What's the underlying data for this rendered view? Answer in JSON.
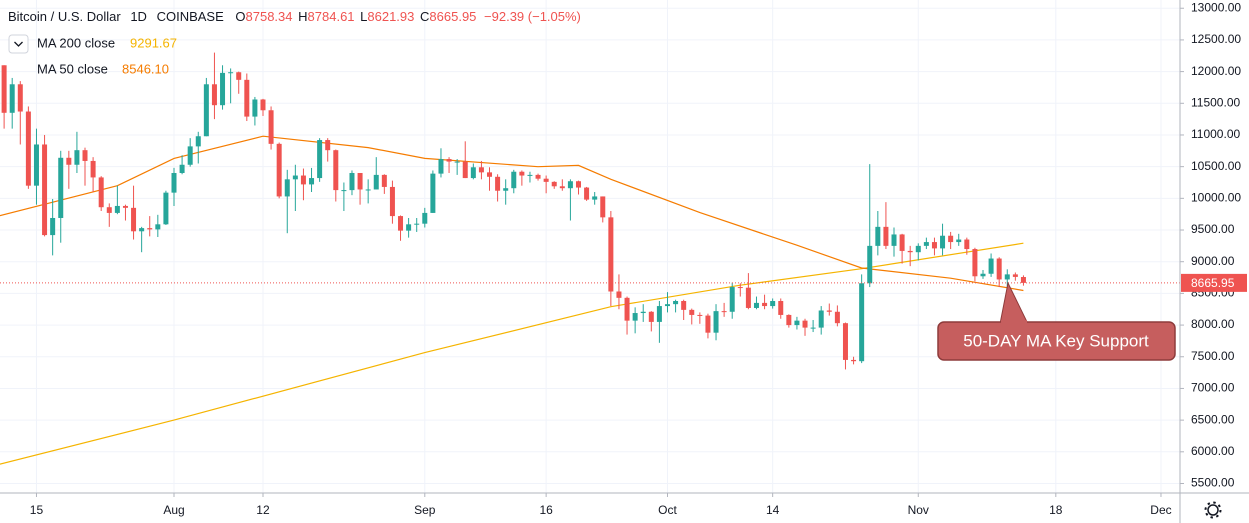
{
  "chart_data": {
    "type": "candlestick",
    "title": "Bitcoin / U.S. Dollar",
    "interval": "1D",
    "exchange": "COINBASE",
    "ohlc_letters": [
      "O",
      "H",
      "L",
      "C"
    ],
    "change_label": "−92.39 (−1.05%)",
    "annotation": "50-DAY MA Key Support",
    "up_color": "#26a69a",
    "down_color": "#ef5350",
    "x": [
      "Jul 11",
      "Jul 12",
      "Jul 13",
      "Jul 14",
      "Jul 15",
      "Jul 16",
      "Jul 17",
      "Jul 18",
      "Jul 19",
      "Jul 20",
      "Jul 21",
      "Jul 22",
      "Jul 23",
      "Jul 24",
      "Jul 25",
      "Jul 26",
      "Jul 27",
      "Jul 28",
      "Jul 29",
      "Jul 30",
      "Jul 31",
      "Aug 1",
      "Aug 2",
      "Aug 3",
      "Aug 4",
      "Aug 5",
      "Aug 6",
      "Aug 7",
      "Aug 8",
      "Aug 9",
      "Aug 10",
      "Aug 11",
      "Aug 12",
      "Aug 13",
      "Aug 14",
      "Aug 15",
      "Aug 16",
      "Aug 17",
      "Aug 18",
      "Aug 19",
      "Aug 20",
      "Aug 21",
      "Aug 22",
      "Aug 23",
      "Aug 24",
      "Aug 25",
      "Aug 26",
      "Aug 27",
      "Aug 28",
      "Aug 29",
      "Aug 30",
      "Aug 31",
      "Sep 1",
      "Sep 2",
      "Sep 3",
      "Sep 4",
      "Sep 5",
      "Sep 6",
      "Sep 7",
      "Sep 8",
      "Sep 9",
      "Sep 10",
      "Sep 11",
      "Sep 12",
      "Sep 13",
      "Sep 14",
      "Sep 15",
      "Sep 16",
      "Sep 17",
      "Sep 18",
      "Sep 19",
      "Sep 20",
      "Sep 21",
      "Sep 22",
      "Sep 23",
      "Sep 24",
      "Sep 25",
      "Sep 26",
      "Sep 27",
      "Sep 28",
      "Sep 29",
      "Sep 30",
      "Oct 1",
      "Oct 2",
      "Oct 3",
      "Oct 4",
      "Oct 5",
      "Oct 6",
      "Oct 7",
      "Oct 8",
      "Oct 9",
      "Oct 10",
      "Oct 11",
      "Oct 12",
      "Oct 13",
      "Oct 14",
      "Oct 15",
      "Oct 16",
      "Oct 17",
      "Oct 18",
      "Oct 19",
      "Oct 20",
      "Oct 21",
      "Oct 22",
      "Oct 23",
      "Oct 24",
      "Oct 25",
      "Oct 26",
      "Oct 27",
      "Oct 28",
      "Oct 29",
      "Oct 30",
      "Oct 31",
      "Nov 1",
      "Nov 2",
      "Nov 3",
      "Nov 4",
      "Nov 5",
      "Nov 6",
      "Nov 7",
      "Nov 8",
      "Nov 9",
      "Nov 10",
      "Nov 11",
      "Nov 12",
      "Nov 13",
      "Nov 14"
    ],
    "open": [
      12100,
      11350,
      11800,
      11370,
      10200,
      10850,
      9420,
      9690,
      10640,
      10530,
      10760,
      10590,
      10330,
      9860,
      9770,
      9880,
      9850,
      9480,
      9530,
      9510,
      9590,
      10090,
      10400,
      10530,
      10820,
      10980,
      11800,
      11470,
      11980,
      11990,
      11870,
      11290,
      11560,
      11390,
      10860,
      10030,
      10300,
      10360,
      10220,
      10320,
      10920,
      10760,
      10130,
      10130,
      10400,
      10140,
      10140,
      10370,
      10180,
      9720,
      9490,
      9590,
      9600,
      9770,
      10390,
      10620,
      10580,
      10580,
      10320,
      10490,
      10410,
      10340,
      10120,
      10160,
      10420,
      10360,
      10370,
      10310,
      10260,
      10190,
      10160,
      10270,
      10170,
      9980,
      10030,
      9700,
      8530,
      8430,
      8070,
      8190,
      8210,
      8050,
      8300,
      8330,
      8380,
      8240,
      8160,
      8150,
      7880,
      8220,
      8210,
      8600,
      8590,
      8270,
      8350,
      8300,
      8380,
      8160,
      8000,
      8070,
      7960,
      7960,
      8230,
      8210,
      8030,
      7450,
      7430,
      8660,
      9250,
      9550,
      9250,
      9430,
      9170,
      9150,
      9250,
      9310,
      9210,
      9410,
      9310,
      9350,
      9200,
      8770,
      8810,
      9050,
      8720,
      8800,
      8758.34
    ],
    "high": [
      12100,
      11900,
      11850,
      11450,
      11100,
      11000,
      9990,
      10750,
      10750,
      11050,
      10800,
      10650,
      10350,
      9920,
      10200,
      9900,
      10200,
      9550,
      9720,
      9740,
      10120,
      10480,
      10680,
      10950,
      11050,
      11900,
      12300,
      12100,
      12050,
      12000,
      11970,
      11600,
      11570,
      11450,
      10880,
      10450,
      10530,
      10470,
      10480,
      10950,
      10950,
      10770,
      10250,
      10440,
      10400,
      10300,
      10650,
      10380,
      10280,
      9730,
      9690,
      9690,
      9850,
      10440,
      10790,
      10650,
      10620,
      10900,
      10550,
      10590,
      10490,
      10380,
      10300,
      10450,
      10440,
      10420,
      10390,
      10360,
      10270,
      10300,
      10300,
      10280,
      10180,
      10100,
      10030,
      9800,
      8800,
      8450,
      8280,
      8330,
      8220,
      8380,
      8520,
      8400,
      8400,
      8260,
      8200,
      8180,
      8330,
      8350,
      8670,
      8660,
      8820,
      8450,
      8480,
      8420,
      8420,
      8170,
      8130,
      8100,
      8080,
      8300,
      8340,
      8310,
      8040,
      7500,
      8800,
      10540,
      9800,
      9940,
      9540,
      9440,
      9250,
      9290,
      9380,
      9380,
      9600,
      9470,
      9440,
      9380,
      9220,
      8870,
      9130,
      9070,
      8880,
      8830,
      8784.61
    ],
    "low": [
      11100,
      11100,
      10850,
      10150,
      9900,
      9400,
      9100,
      9300,
      10150,
      10400,
      10200,
      10100,
      9800,
      9550,
      9750,
      9650,
      9350,
      9150,
      9400,
      9390,
      9580,
      9880,
      10380,
      10500,
      10550,
      10980,
      11250,
      11400,
      11500,
      11650,
      11220,
      11150,
      11300,
      10770,
      10000,
      9450,
      9800,
      9970,
      10100,
      10260,
      10580,
      9950,
      9800,
      10050,
      9900,
      9920,
      10140,
      10070,
      9600,
      9330,
      9380,
      9470,
      9540,
      9770,
      10330,
      10400,
      10370,
      10320,
      10300,
      10300,
      10120,
      9950,
      9900,
      10080,
      10200,
      10250,
      10280,
      10080,
      10150,
      10120,
      9650,
      10060,
      9960,
      9900,
      9620,
      8300,
      8250,
      7850,
      7870,
      8050,
      7900,
      7720,
      8200,
      8200,
      8080,
      8010,
      8020,
      7790,
      7760,
      8130,
      8100,
      8450,
      8250,
      8250,
      8250,
      8260,
      8100,
      7960,
      7930,
      7830,
      7890,
      7850,
      8150,
      7980,
      7300,
      7380,
      7400,
      8600,
      9100,
      9200,
      9080,
      8970,
      8930,
      9020,
      9200,
      9100,
      9100,
      9200,
      9250,
      9110,
      8690,
      8730,
      8760,
      8600,
      8570,
      8700,
      8621.93
    ],
    "close": [
      11350,
      11800,
      11370,
      10200,
      10850,
      9420,
      9690,
      10640,
      10530,
      10760,
      10590,
      10330,
      9860,
      9770,
      9880,
      9850,
      9480,
      9530,
      9510,
      9590,
      10090,
      10400,
      10530,
      10820,
      10980,
      11800,
      11470,
      11980,
      11990,
      11870,
      11290,
      11560,
      11390,
      10860,
      10030,
      10300,
      10360,
      10220,
      10320,
      10920,
      10760,
      10130,
      10130,
      10400,
      10140,
      10140,
      10370,
      10180,
      9720,
      9490,
      9590,
      9600,
      9770,
      10390,
      10620,
      10580,
      10580,
      10320,
      10490,
      10410,
      10340,
      10120,
      10160,
      10420,
      10360,
      10370,
      10310,
      10260,
      10190,
      10160,
      10270,
      10170,
      9980,
      10030,
      9700,
      8530,
      8430,
      8070,
      8190,
      8210,
      8050,
      8300,
      8330,
      8380,
      8240,
      8160,
      8150,
      7880,
      8220,
      8210,
      8600,
      8590,
      8270,
      8350,
      8300,
      8380,
      8160,
      8000,
      8070,
      7960,
      7960,
      8230,
      8210,
      8030,
      7450,
      7430,
      8660,
      9250,
      9550,
      9250,
      9430,
      9170,
      9150,
      9250,
      9310,
      9210,
      9410,
      9310,
      9350,
      9200,
      8770,
      8810,
      9050,
      8720,
      8800,
      8760,
      8665.95
    ],
    "series": [
      {
        "name": "MA 200 close",
        "color": "#f5b400",
        "legend_value": 9291.67,
        "x": [
          "Jul 10",
          "Aug 1",
          "Sep 1",
          "Sep 24",
          "Oct 10",
          "Oct 25",
          "Nov 14"
        ],
        "values": [
          5790,
          6500,
          7565,
          8290,
          8630,
          8890,
          9291.67
        ]
      },
      {
        "name": "MA 50 close",
        "color": "#f57c00",
        "legend_value": {
          "value": 8546.1,
          "label": "8546.10"
        },
        "x": [
          "Jul 10",
          "Jul 25",
          "Aug 1",
          "Aug 12",
          "Aug 25",
          "Sep 1",
          "Sep 15",
          "Sep 20",
          "Sep 24",
          "Oct 5",
          "Oct 17",
          "Oct 25",
          "Nov 5",
          "Nov 14"
        ],
        "values": [
          9710,
          10200,
          10630,
          10980,
          10800,
          10630,
          10500,
          10520,
          10300,
          9775,
          9260,
          8900,
          8740,
          8546.1
        ]
      }
    ],
    "ylim": [
      5350,
      13130
    ],
    "yticks": [
      {
        "value": 5500,
        "label": "5500.00"
      },
      {
        "value": 6000,
        "label": "6000.00"
      },
      {
        "value": 6500,
        "label": "6500.00"
      },
      {
        "value": 7000,
        "label": "7000.00"
      },
      {
        "value": 7500,
        "label": "7500.00"
      },
      {
        "value": 8000,
        "label": "8000.00"
      },
      {
        "value": 8500,
        "label": "8500.00"
      },
      {
        "value": 9000,
        "label": "9000.00"
      },
      {
        "value": 9500,
        "label": "9500.00"
      },
      {
        "value": 10000,
        "label": "10000.00"
      },
      {
        "value": 10500,
        "label": "10500.00"
      },
      {
        "value": 11000,
        "label": "11000.00"
      },
      {
        "value": 11500,
        "label": "11500.00"
      },
      {
        "value": 12000,
        "label": "12000.00"
      },
      {
        "value": 12500,
        "label": "12500.00"
      },
      {
        "value": 13000,
        "label": "13000.00"
      }
    ],
    "xticks": [
      {
        "value": "Jul 15",
        "label": "15"
      },
      {
        "value": "Aug 1",
        "label": "Aug"
      },
      {
        "value": "Aug 12",
        "label": "12"
      },
      {
        "value": "Sep 1",
        "label": "Sep"
      },
      {
        "value": "Sep 16",
        "label": "16"
      },
      {
        "value": "Oct 1",
        "label": "Oct"
      },
      {
        "value": "Oct 14",
        "label": "14"
      },
      {
        "value": "Nov 1",
        "label": "Nov"
      },
      {
        "value": "Nov 18",
        "label": "18"
      },
      {
        "value": "Dec 1",
        "label": "Dec"
      }
    ],
    "grid": true
  }
}
